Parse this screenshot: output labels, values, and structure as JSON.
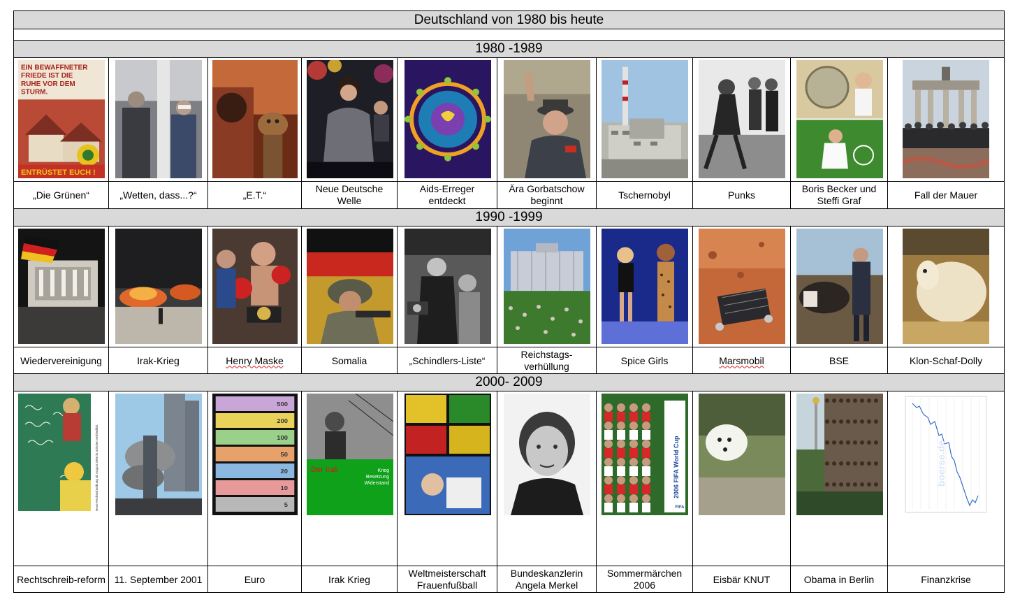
{
  "title": "Deutschland von 1980 bis heute",
  "decades": [
    {
      "label": "1980 -1989",
      "items": [
        {
          "caption": "„Die Grünen“",
          "image": "poster-die-gruenen",
          "poster_text": "EIN BEWAFFNETER FRIEDE IST DIE RUHE VOR DEM STURM.",
          "poster_footer": "ENTRÜSTET EUCH !",
          "badge_text": "DIE GRÜNEN"
        },
        {
          "caption": "„Wetten, dass...?“",
          "image": "tv-show-photo"
        },
        {
          "caption": "„E.T.“",
          "image": "et-movie-still"
        },
        {
          "caption": "Neue Deutsche Welle",
          "image": "singer-photo"
        },
        {
          "caption": "Aids-Erreger entdeckt",
          "image": "virus-illustration"
        },
        {
          "caption": "Ära Gorbatschow beginnt",
          "image": "gorbachev-photo"
        },
        {
          "caption": "Tschernobyl",
          "image": "power-plant-photo"
        },
        {
          "caption": "Punks",
          "image": "punks-photo"
        },
        {
          "caption": "Boris Becker und Steffi Graf",
          "image": "tennis-photo"
        },
        {
          "caption": "Fall der Mauer",
          "image": "brandenburg-gate-photo"
        }
      ]
    },
    {
      "label": "1990 -1999",
      "items": [
        {
          "caption": "Wiedervereinigung",
          "image": "reichstag-flag-photo"
        },
        {
          "caption": "Irak-Krieg",
          "image": "oil-fire-photo"
        },
        {
          "caption": "Henry Maske",
          "image": "boxer-photo",
          "flagged": true
        },
        {
          "caption": "Somalia",
          "image": "soldier-photo"
        },
        {
          "caption": "„Schindlers-Liste“",
          "image": "schindler-still"
        },
        {
          "caption": "Reichstags-verhüllung",
          "image": "wrapped-reichstag-photo"
        },
        {
          "caption": "Spice Girls",
          "image": "spice-girls-photo"
        },
        {
          "caption": "Marsmobil",
          "image": "mars-rover-photo",
          "flagged": true
        },
        {
          "caption": "BSE",
          "image": "farmer-cattle-photo"
        },
        {
          "caption": "Klon-Schaf-Dolly",
          "image": "sheep-photo"
        }
      ]
    },
    {
      "label": "2000- 2009",
      "items": [
        {
          "caption": "Rechtschreib-reform",
          "image": "chalkboard-photo",
          "side_text": "Neue Rechtschreibung ab August 2005 in Schulen verbindlich"
        },
        {
          "caption": "11. September 2001",
          "image": "twin-towers-photo"
        },
        {
          "caption": "Euro",
          "image": "euro-notes-photo",
          "denominations": [
            "500",
            "200",
            "100",
            "50",
            "20",
            "10",
            "5"
          ]
        },
        {
          "caption": "Irak Krieg",
          "image": "iraq-collage",
          "overlay_title": "Der Irak",
          "overlay_lines": [
            "Krieg",
            "Besetzung",
            "Widerstand"
          ]
        },
        {
          "caption": "Weltmeisterschaft Frauenfußball",
          "image": "football-collage"
        },
        {
          "caption": "Bundeskanzlerin Angela Merkel",
          "image": "merkel-portrait"
        },
        {
          "caption": "Sommermärchen 2006",
          "image": "team-photo",
          "banner_text": "2006 FIFA World Cup",
          "banner_logo": "FIFA"
        },
        {
          "caption": "Eisbär KNUT",
          "image": "polar-bear-photo"
        },
        {
          "caption": "Obama in Berlin",
          "image": "crowd-photo"
        },
        {
          "caption": "Finanzkrise",
          "image": "stock-chart",
          "chart_watermark": "boerse.de"
        }
      ]
    }
  ]
}
